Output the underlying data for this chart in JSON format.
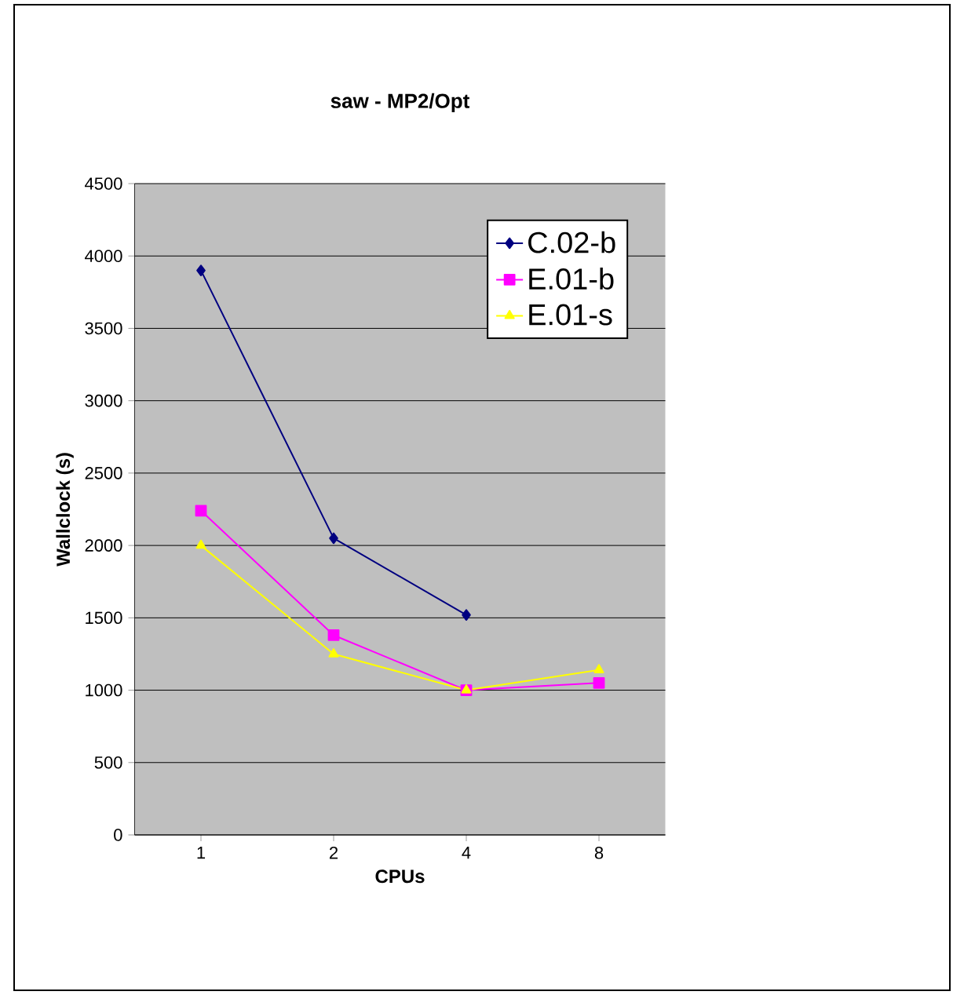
{
  "chart_data": {
    "type": "line",
    "title": "saw - MP2/Opt",
    "xlabel": "CPUs",
    "ylabel": "Wallclock (s)",
    "categories": [
      "1",
      "2",
      "4",
      "8"
    ],
    "series": [
      {
        "name": "C.02-b",
        "color": "#000080",
        "marker": "diamond",
        "values": [
          3900,
          2050,
          1520,
          null
        ]
      },
      {
        "name": "E.01-b",
        "color": "#ff00ff",
        "marker": "square",
        "values": [
          2240,
          1380,
          1000,
          1050
        ]
      },
      {
        "name": "E.01-s",
        "color": "#ffff00",
        "marker": "triangle",
        "values": [
          2000,
          1250,
          1000,
          1140
        ]
      }
    ],
    "ylim": [
      0,
      4500
    ],
    "yticks": [
      0,
      500,
      1000,
      1500,
      2000,
      2500,
      3000,
      3500,
      4000,
      4500
    ],
    "grid": "y",
    "legend": "top right",
    "line_style": "solid"
  }
}
